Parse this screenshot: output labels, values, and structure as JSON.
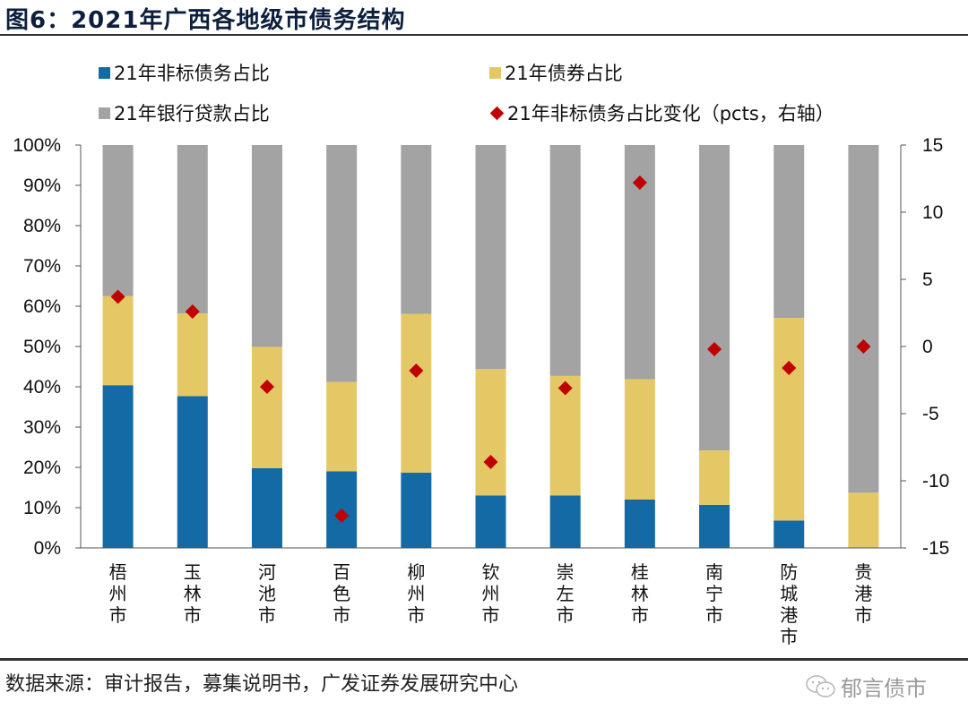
{
  "header": {
    "title": "图6：2021年广西各地级市债务结构"
  },
  "footer": {
    "source": "数据来源：审计报告，募集说明书，广发证券发展研究中心",
    "watermark": "郁言债市"
  },
  "colors": {
    "nonstandard": "#136aa5",
    "bond": "#e5c866",
    "bank": "#a3a3a3",
    "change": "#c00000"
  },
  "chart_data": {
    "type": "bar",
    "stacked": true,
    "title": "2021年广西各地级市债务结构",
    "categories": [
      "梧州市",
      "玉林市",
      "河池市",
      "百色市",
      "柳州市",
      "钦州市",
      "崇左市",
      "桂林市",
      "南宁市",
      "防城港市",
      "贵港市"
    ],
    "series": [
      {
        "name": "21年非标债务占比",
        "axis": "left",
        "type": "bar",
        "values": [
          40.4,
          37.7,
          19.8,
          19.0,
          18.7,
          13.0,
          13.0,
          12.0,
          10.7,
          6.8,
          0.0
        ]
      },
      {
        "name": "21年债券占比",
        "axis": "left",
        "type": "bar",
        "values": [
          22.1,
          20.5,
          30.1,
          22.2,
          39.4,
          31.4,
          29.7,
          29.9,
          13.5,
          50.3,
          13.7
        ]
      },
      {
        "name": "21年银行贷款占比",
        "axis": "left",
        "type": "bar",
        "values": [
          37.5,
          41.8,
          50.1,
          58.8,
          41.9,
          55.6,
          57.3,
          58.1,
          75.8,
          42.9,
          86.3
        ]
      },
      {
        "name": "21年非标债务占比变化（pcts，右轴）",
        "axis": "right",
        "type": "scatter",
        "marker": "diamond",
        "values": [
          3.7,
          2.6,
          -3.0,
          -12.6,
          -1.8,
          -8.6,
          -3.1,
          12.2,
          -0.2,
          -1.6,
          0.0
        ]
      }
    ],
    "left_axis": {
      "ylim": [
        0,
        100
      ],
      "ticks": [
        "0%",
        "10%",
        "20%",
        "30%",
        "40%",
        "50%",
        "60%",
        "70%",
        "80%",
        "90%",
        "100%"
      ]
    },
    "right_axis": {
      "ylim": [
        -15,
        15
      ],
      "ticks": [
        "-15",
        "-10",
        "-5",
        "0",
        "5",
        "10",
        "15"
      ]
    },
    "xlabel": "",
    "ylabel": "",
    "grid": false,
    "legend": [
      {
        "label": "21年非标债务占比",
        "marker": "square",
        "color_key": "nonstandard"
      },
      {
        "label": "21年债券占比",
        "marker": "square",
        "color_key": "bond"
      },
      {
        "label": "21年银行贷款占比",
        "marker": "square",
        "color_key": "bank"
      },
      {
        "label": "21年非标债务占比变化（pcts，右轴）",
        "marker": "diamond",
        "color_key": "change"
      }
    ],
    "legend_position": "top"
  }
}
